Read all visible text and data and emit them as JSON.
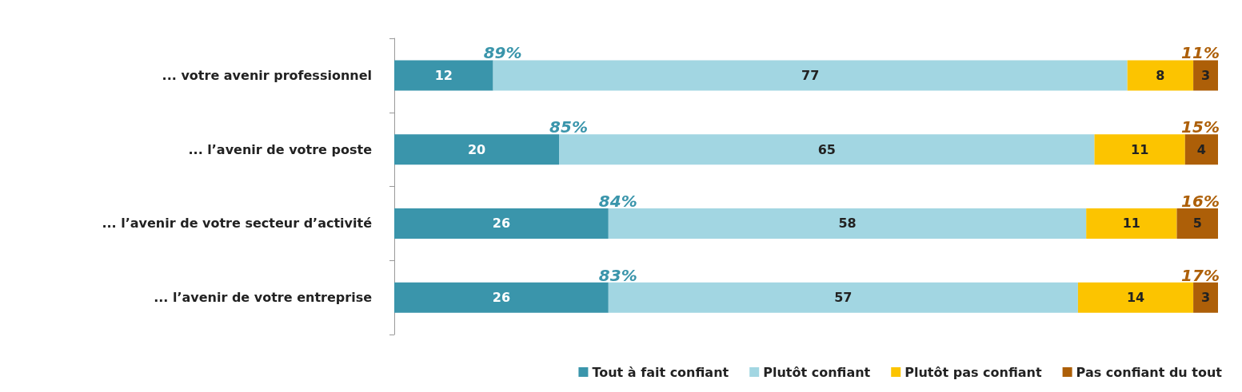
{
  "chart_data": {
    "type": "bar",
    "orientation": "horizontal",
    "stacked": true,
    "categories": [
      "... votre avenir professionnel",
      "... l’avenir de votre poste",
      "... l’avenir de votre secteur d’activité",
      "... l’avenir de votre entreprise"
    ],
    "series": [
      {
        "name": "Tout à fait confiant",
        "color": "#3a95ab",
        "values": [
          12,
          20,
          26,
          26
        ]
      },
      {
        "name": "Plutôt confiant",
        "color": "#a2d6e2",
        "values": [
          77,
          65,
          58,
          57
        ]
      },
      {
        "name": "Plutôt pas confiant",
        "color": "#fcc400",
        "values": [
          8,
          11,
          11,
          14
        ]
      },
      {
        "name": "Pas confiant du tout",
        "color": "#ad5f08",
        "values": [
          3,
          4,
          5,
          3
        ]
      }
    ],
    "xlim": [
      0,
      100
    ],
    "tick_labels": "y",
    "data_labels": true,
    "legend": "bottom",
    "annotations": [
      {
        "text": "89%",
        "x": 12,
        "y": "... votre avenir professionnel"
      },
      {
        "text": "11%",
        "x": 100,
        "y": "... votre avenir professionnel"
      },
      {
        "text": "85%",
        "x": 20,
        "y": "... l’avenir de votre poste"
      },
      {
        "text": "15%",
        "x": 100,
        "y": "... l’avenir de votre poste"
      },
      {
        "text": "84%",
        "x": 26,
        "y": "... l’avenir de votre secteur d’activité"
      },
      {
        "text": "16%",
        "x": 100,
        "y": "... l’avenir de votre secteur d’activité"
      },
      {
        "text": "83%",
        "x": 26,
        "y": "... l’avenir de votre entreprise"
      },
      {
        "text": "17%",
        "x": 100,
        "y": "... l’avenir de votre entreprise"
      }
    ]
  }
}
